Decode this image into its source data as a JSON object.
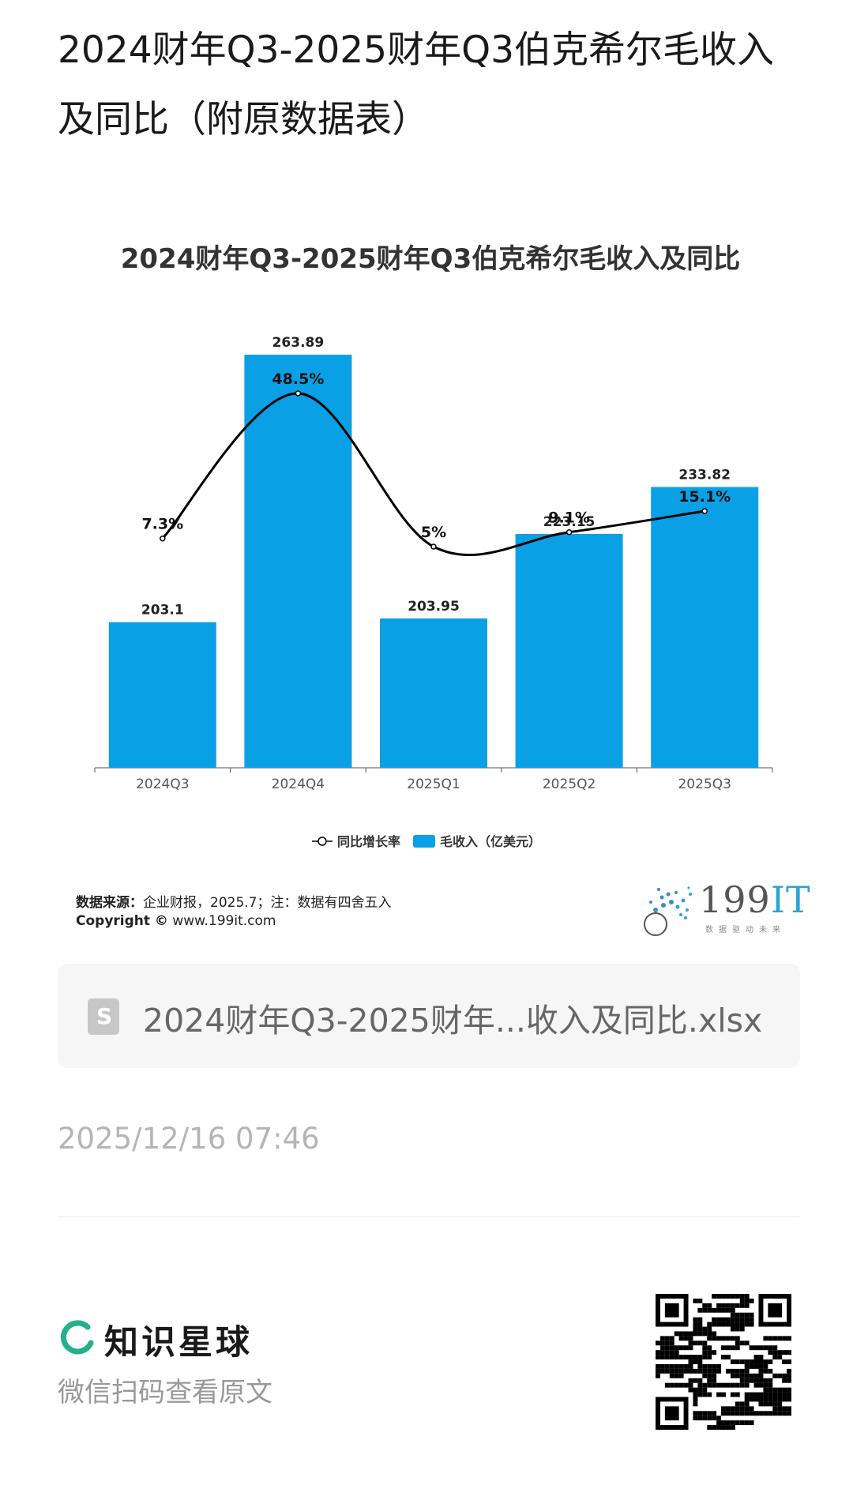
{
  "page_title": "2024财年Q3-2025财年Q3伯克希尔毛收入及同比（附原数据表）",
  "chart_data": {
    "type": "bar",
    "title": "2024财年Q3-2025财年Q3伯克希尔毛收入及同比",
    "categories": [
      "2024Q3",
      "2024Q4",
      "2025Q1",
      "2025Q2",
      "2025Q3"
    ],
    "series": [
      {
        "name": "毛收入（亿美元）",
        "type": "bar",
        "values": [
          203.1,
          263.89,
          203.95,
          223.15,
          233.82
        ],
        "labels": [
          "203.1",
          "263.89",
          "203.95",
          "223.15",
          "233.82"
        ],
        "color": "#0aa0e6"
      },
      {
        "name": "同比增长率",
        "type": "line",
        "values": [
          7.3,
          48.5,
          5,
          9.1,
          15.1
        ],
        "labels": [
          "7.3%",
          "48.5%",
          "5%",
          "9.1%",
          "15.1%"
        ],
        "color": "#000000"
      }
    ],
    "legend": [
      "同比增长率",
      "毛收入（亿美元）"
    ],
    "legend_position": "bottom",
    "grid": false
  },
  "source": {
    "label": "数据来源：",
    "text": "企业财报，2025.7；注：数据有四舍五入",
    "copyright_label": "Copyright ©",
    "copyright_text": "www.199it.com"
  },
  "brand": {
    "name": "199",
    "name_accent": "IT",
    "tagline": "数据驱动未来"
  },
  "file": {
    "icon": "spreadsheet-file-icon",
    "icon_letter": "S",
    "name": "2024财年Q3-2025财年...收入及同比.xlsx"
  },
  "timestamp": "2025/12/16 07:46",
  "footer": {
    "app_name": "知识星球",
    "hint": "微信扫码查看原文"
  },
  "colors": {
    "bar": "#0aa0e6",
    "line": "#000000",
    "accent": "#23b08a"
  }
}
